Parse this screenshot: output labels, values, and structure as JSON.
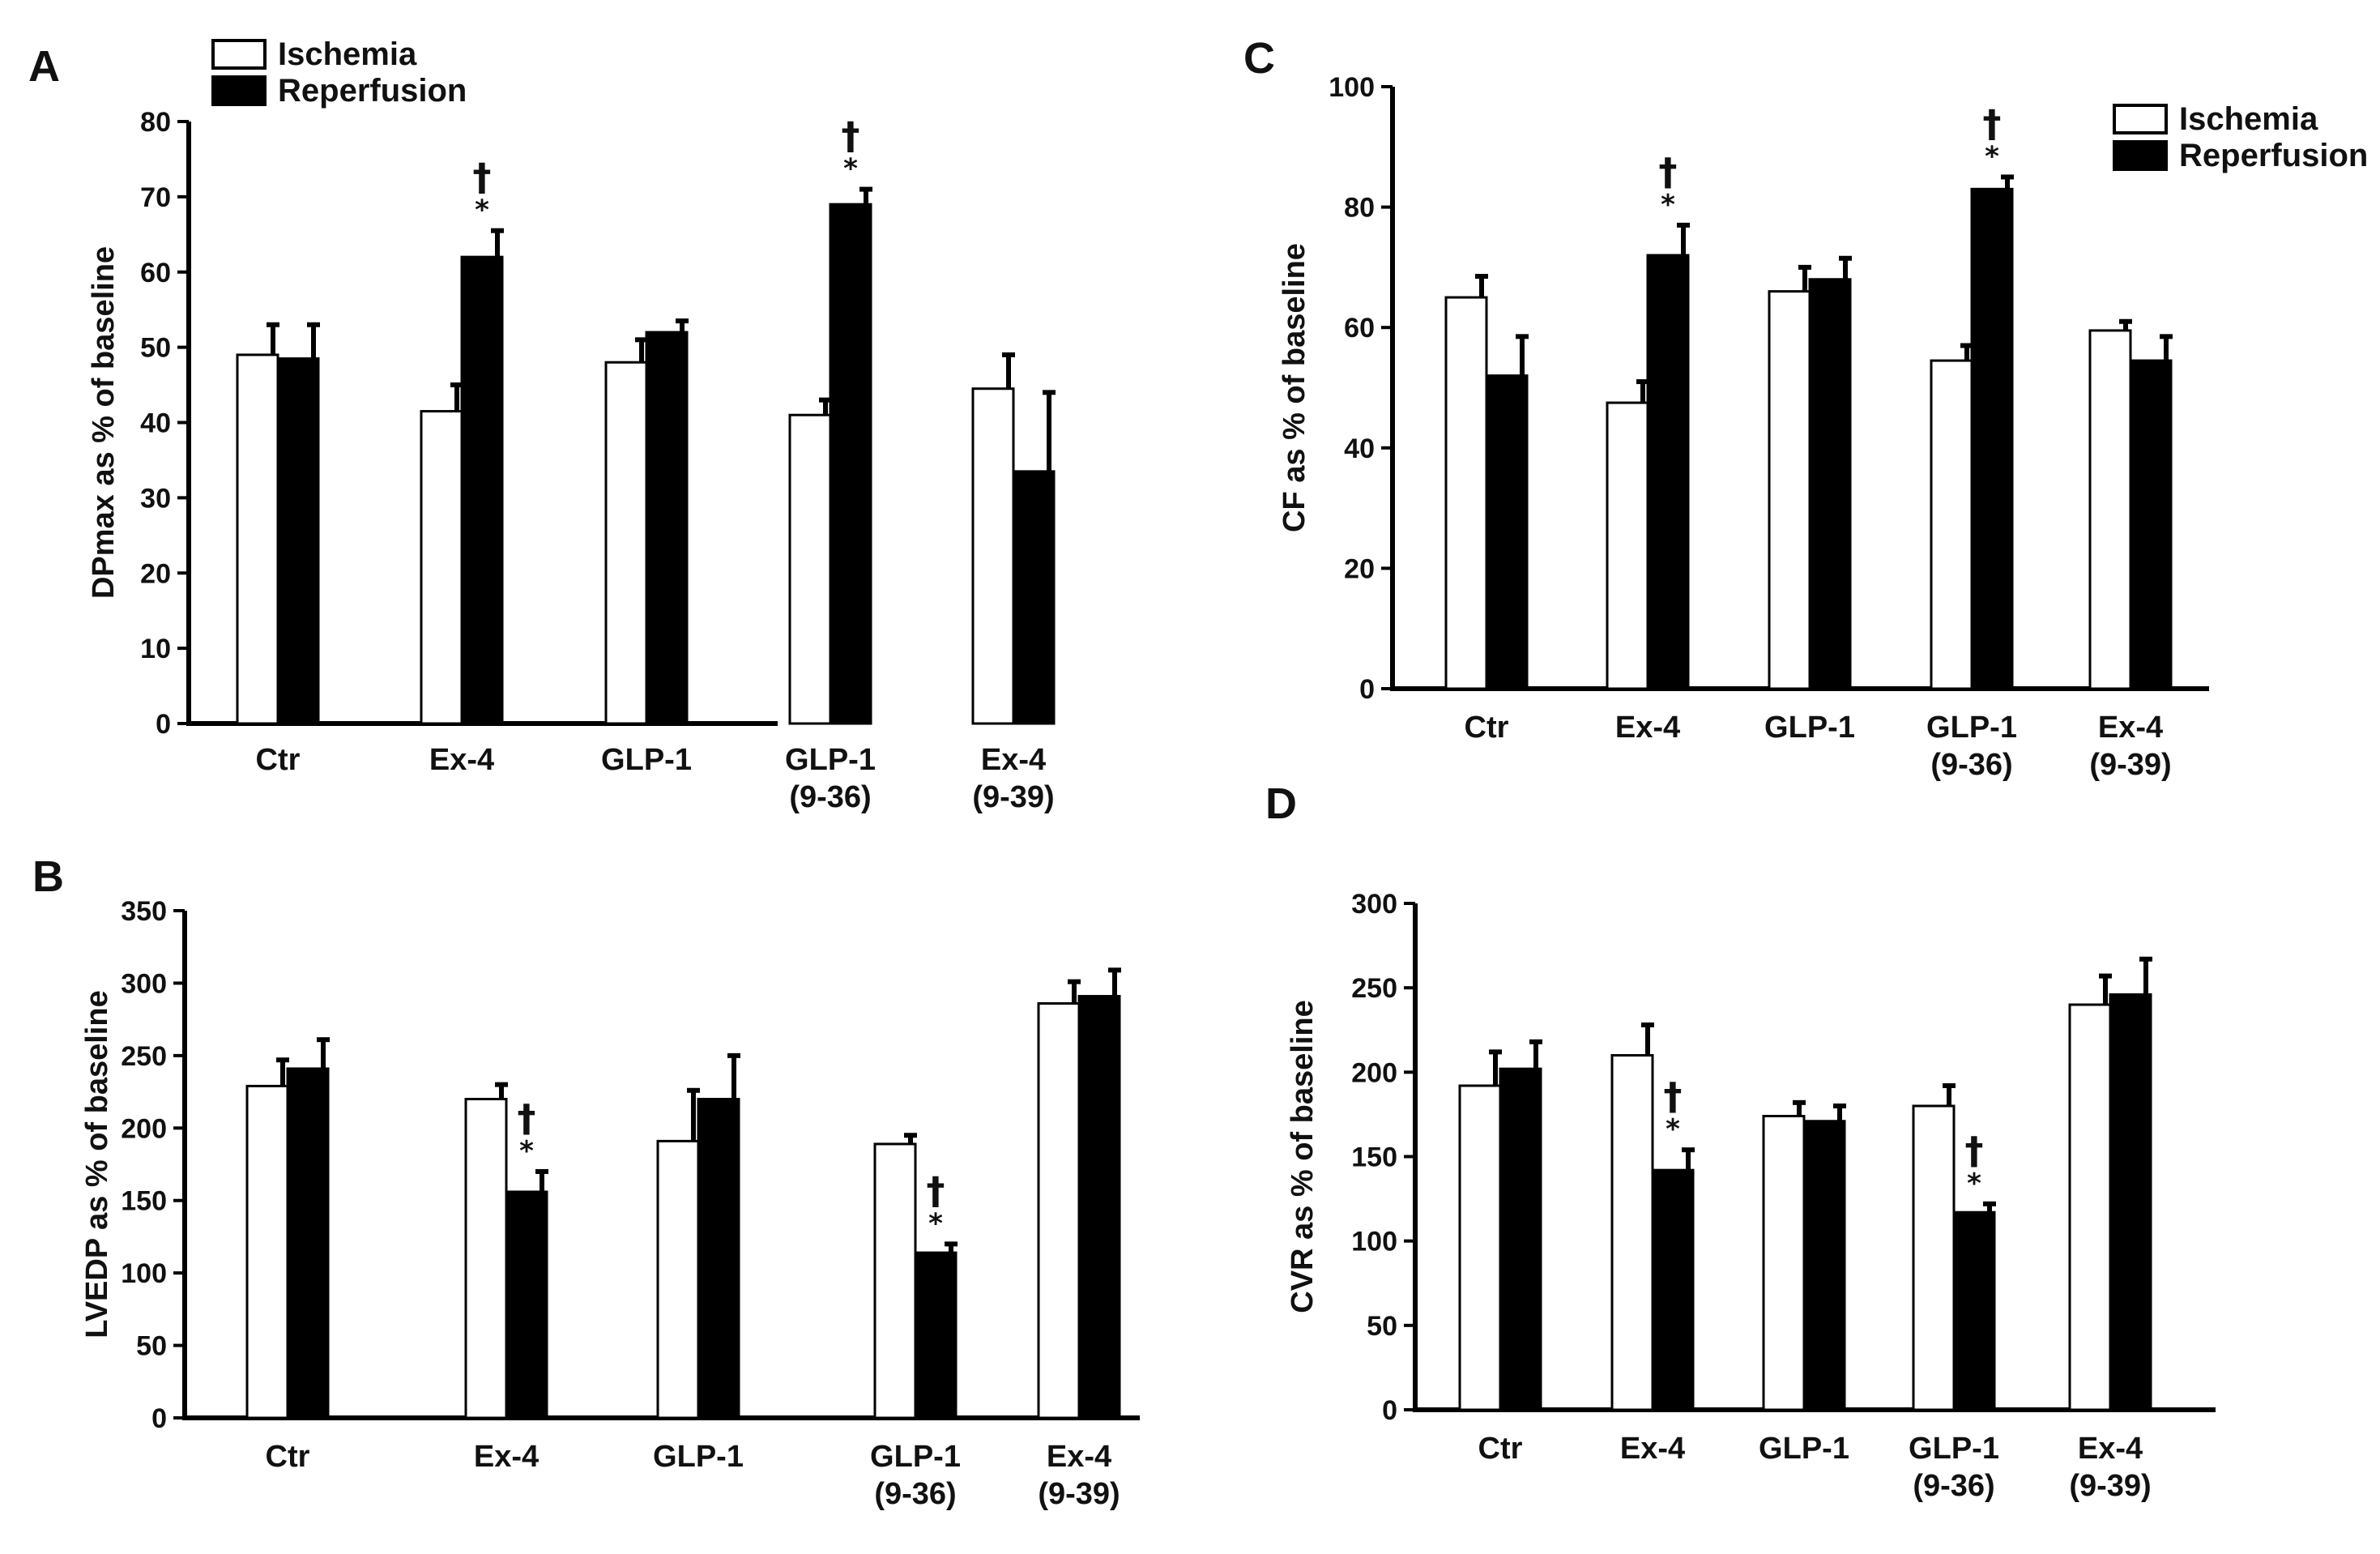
{
  "colors": {
    "ischemia": "#ffffff",
    "reperfusion": "#000000",
    "axis": "#000000"
  },
  "legend_labels": [
    "Ischemia",
    "Reperfusion"
  ],
  "chart_data": [
    {
      "panel": "A",
      "type": "bar",
      "legend_position": "top-left",
      "categories": [
        [
          "Ctr"
        ],
        [
          "Ex-4"
        ],
        [
          "GLP-1"
        ],
        [
          "GLP-1",
          "(9-36)"
        ],
        [
          "Ex-4",
          "(9-39)"
        ]
      ],
      "ylabel": "DPmax as % of baseline",
      "ylim": [
        0,
        80
      ],
      "yticks": [
        "0",
        "10",
        "20",
        "30",
        "40",
        "50",
        "60",
        "70",
        "80"
      ],
      "series": [
        {
          "name": "Ischemia",
          "values": [
            49,
            41.5,
            48,
            41,
            44.5
          ],
          "errors": [
            4,
            3.5,
            3,
            2,
            4.5
          ]
        },
        {
          "name": "Reperfusion",
          "values": [
            48.5,
            62,
            52,
            69,
            33.5
          ],
          "errors": [
            4.5,
            3.5,
            1.5,
            2,
            10.5
          ]
        }
      ],
      "annotations": [
        {
          "category": 1,
          "series": 1,
          "marks": [
            "*",
            "†"
          ]
        },
        {
          "category": 3,
          "series": 1,
          "marks": [
            "*",
            "†"
          ]
        }
      ]
    },
    {
      "panel": "B",
      "type": "bar",
      "legend_position": "none",
      "categories": [
        [
          "Ctr"
        ],
        [
          "Ex-4"
        ],
        [
          "GLP-1"
        ],
        [
          "GLP-1",
          "(9-36)"
        ],
        [
          "Ex-4",
          "(9-39)"
        ]
      ],
      "ylabel": "LVEDP as % of baseline",
      "ylim": [
        0,
        350
      ],
      "yticks": [
        "0",
        "50",
        "100",
        "150",
        "200",
        "250",
        "300",
        "350"
      ],
      "series": [
        {
          "name": "Ischemia",
          "values": [
            229,
            220,
            191,
            189,
            286
          ],
          "errors": [
            18,
            10,
            35,
            6,
            15
          ]
        },
        {
          "name": "Reperfusion",
          "values": [
            241,
            156,
            220,
            114,
            291
          ],
          "errors": [
            20,
            14,
            30,
            6,
            18
          ]
        }
      ],
      "annotations": [
        {
          "category": 1,
          "series": 1,
          "marks": [
            "*",
            "†"
          ]
        },
        {
          "category": 3,
          "series": 1,
          "marks": [
            "*",
            "†"
          ]
        }
      ]
    },
    {
      "panel": "C",
      "type": "bar",
      "legend_position": "top-right",
      "categories": [
        [
          "Ctr"
        ],
        [
          "Ex-4"
        ],
        [
          "GLP-1"
        ],
        [
          "GLP-1",
          "(9-36)"
        ],
        [
          "Ex-4",
          "(9-39)"
        ]
      ],
      "ylabel": "CF as % of baseline",
      "ylim": [
        0,
        100
      ],
      "yticks": [
        "0",
        "20",
        "40",
        "60",
        "80",
        "100"
      ],
      "series": [
        {
          "name": "Ischemia",
          "values": [
            65,
            47.5,
            66,
            54.5,
            59.5
          ],
          "errors": [
            3.5,
            3.5,
            4,
            2.5,
            1.5
          ]
        },
        {
          "name": "Reperfusion",
          "values": [
            52,
            72,
            68,
            83,
            54.5
          ],
          "errors": [
            6.5,
            5,
            3.5,
            2,
            4
          ]
        }
      ],
      "annotations": [
        {
          "category": 1,
          "series": 1,
          "marks": [
            "*",
            "†"
          ]
        },
        {
          "category": 3,
          "series": 1,
          "marks": [
            "*",
            "†"
          ]
        }
      ]
    },
    {
      "panel": "D",
      "type": "bar",
      "legend_position": "none",
      "categories": [
        [
          "Ctr"
        ],
        [
          "Ex-4"
        ],
        [
          "GLP-1"
        ],
        [
          "GLP-1",
          "(9-36)"
        ],
        [
          "Ex-4",
          "(9-39)"
        ]
      ],
      "ylabel": "CVR as % of baseline",
      "ylim": [
        0,
        300
      ],
      "yticks": [
        "0",
        "50",
        "100",
        "150",
        "200",
        "250",
        "300"
      ],
      "series": [
        {
          "name": "Ischemia",
          "values": [
            192,
            210,
            174,
            180,
            240
          ],
          "errors": [
            20,
            18,
            8,
            12,
            17
          ]
        },
        {
          "name": "Reperfusion",
          "values": [
            202,
            142,
            171,
            117,
            246
          ],
          "errors": [
            16,
            12,
            9,
            5,
            21
          ]
        }
      ],
      "annotations": [
        {
          "category": 1,
          "series": 1,
          "marks": [
            "*",
            "†"
          ]
        },
        {
          "category": 3,
          "series": 1,
          "marks": [
            "*",
            "†"
          ]
        }
      ]
    }
  ]
}
